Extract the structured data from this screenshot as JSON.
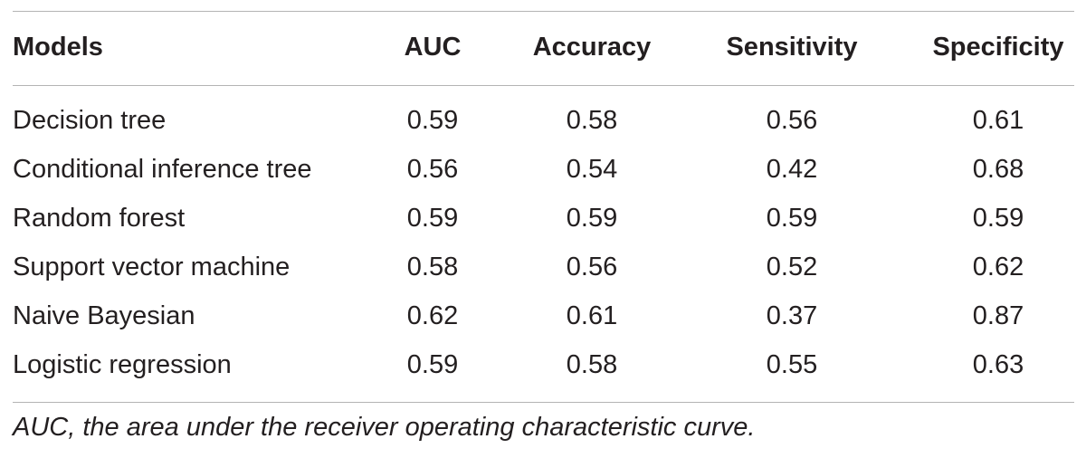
{
  "table": {
    "headers": [
      "Models",
      "AUC",
      "Accuracy",
      "Sensitivity",
      "Specificity"
    ],
    "rows": [
      [
        "Decision tree",
        "0.59",
        "0.58",
        "0.56",
        "0.61"
      ],
      [
        "Conditional inference tree",
        "0.56",
        "0.54",
        "0.42",
        "0.68"
      ],
      [
        "Random forest",
        "0.59",
        "0.59",
        "0.59",
        "0.59"
      ],
      [
        "Support vector machine",
        "0.58",
        "0.56",
        "0.52",
        "0.62"
      ],
      [
        "Naive Bayesian",
        "0.62",
        "0.61",
        "0.37",
        "0.87"
      ],
      [
        "Logistic regression",
        "0.59",
        "0.58",
        "0.55",
        "0.63"
      ]
    ],
    "footnote": "AUC, the area under the receiver operating characteristic curve."
  }
}
